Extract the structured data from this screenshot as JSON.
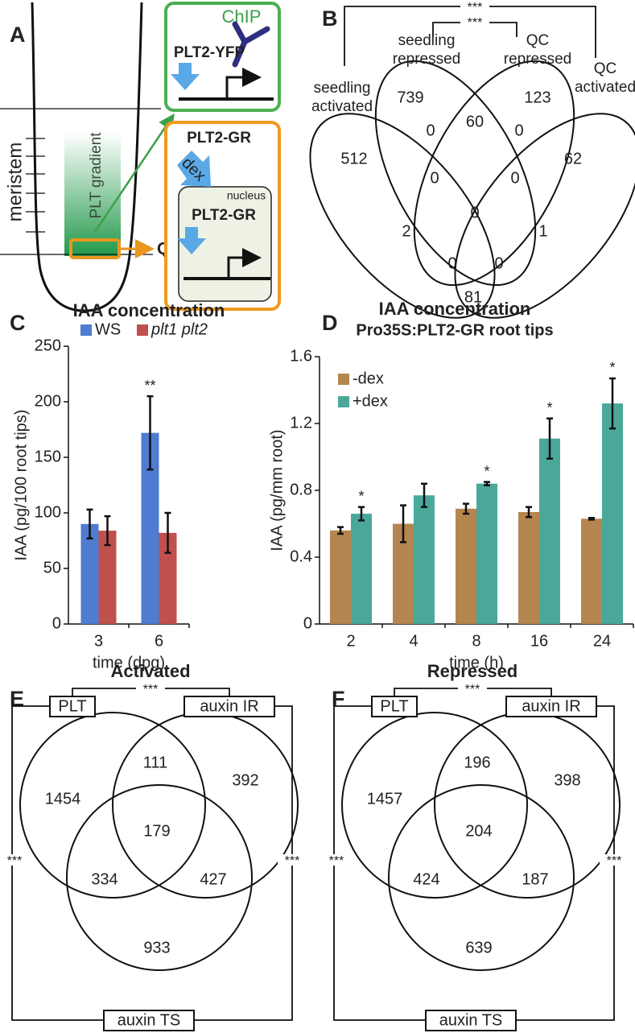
{
  "panel_a": {
    "label": "A",
    "meristem": "meristem",
    "gradient": "PLT gradient",
    "qc": "QC",
    "chip": "ChIP",
    "chip_protein": "PLT2-YFP",
    "gr_protein": "PLT2-GR",
    "treatment": "dex",
    "compartment": "nucleus",
    "gr_protein_nuclear": "PLT2-GR"
  },
  "panel_b": {
    "label": "B",
    "type": "venn4",
    "set_labels": [
      [
        "seedling",
        "activated"
      ],
      [
        "seedling",
        "repressed"
      ],
      [
        "QC",
        "repressed"
      ],
      [
        "QC",
        "activated"
      ]
    ],
    "counts": [
      739,
      123,
      512,
      62,
      0,
      60,
      0,
      0,
      0,
      0,
      2,
      1,
      0,
      0,
      81
    ],
    "significance": [
      "***",
      "***"
    ]
  },
  "chart_data": [
    {
      "panel_label": "C",
      "type": "bar",
      "title": "IAA concentration",
      "x_label": "time (dpg)",
      "y_label": "IAA (pg/100 root tips)",
      "categories": [
        "3",
        "6"
      ],
      "series": [
        {
          "name": "WS",
          "color": "#4f7bd0",
          "values": [
            90,
            172
          ],
          "errors": [
            13,
            33
          ],
          "significance": [
            null,
            "**"
          ]
        },
        {
          "name": "plt1 plt2",
          "color": "#c0504d",
          "font_style": "italic",
          "values": [
            84,
            82
          ],
          "errors": [
            13,
            18
          ]
        }
      ],
      "ylim": [
        0,
        250
      ],
      "yticks": [
        0,
        50,
        100,
        150,
        200,
        250
      ],
      "legend": "top"
    },
    {
      "panel_label": "D",
      "type": "bar",
      "title": "IAA concentration",
      "subtitle": "Pro35S:PLT2-GR root tips",
      "x_label": "time (h)",
      "y_label": "IAA (pg/mm root)",
      "categories": [
        "2",
        "4",
        "8",
        "16",
        "24"
      ],
      "series": [
        {
          "name": "-dex",
          "color": "#b5854f",
          "values": [
            0.56,
            0.6,
            0.69,
            0.67,
            0.63
          ],
          "errors": [
            0.02,
            0.11,
            0.03,
            0.03,
            0.005
          ]
        },
        {
          "name": "+dex",
          "color": "#4aa89a",
          "values": [
            0.66,
            0.77,
            0.84,
            1.11,
            1.32
          ],
          "errors": [
            0.04,
            0.07,
            0.01,
            0.12,
            0.15
          ],
          "significance": [
            "*",
            null,
            "*",
            "*",
            "*"
          ]
        }
      ],
      "ylim": [
        0,
        1.6
      ],
      "yticks": [
        0,
        0.4,
        0.8,
        1.2,
        1.6
      ],
      "legend": "top-left"
    }
  ],
  "panel_e": {
    "label": "E",
    "type": "venn3",
    "title": "Activated",
    "set_labels": [
      "PLT",
      "auxin IR",
      "auxin TS"
    ],
    "counts": [
      1454,
      111,
      392,
      179,
      334,
      427,
      933
    ],
    "significance": [
      "***",
      "***",
      "***"
    ]
  },
  "panel_f": {
    "label": "F",
    "type": "venn3",
    "title": "Repressed",
    "set_labels": [
      "PLT",
      "auxin IR",
      "auxin TS"
    ],
    "counts": [
      1457,
      196,
      398,
      204,
      424,
      187,
      639
    ],
    "significance": [
      "***",
      "***",
      "***"
    ]
  }
}
